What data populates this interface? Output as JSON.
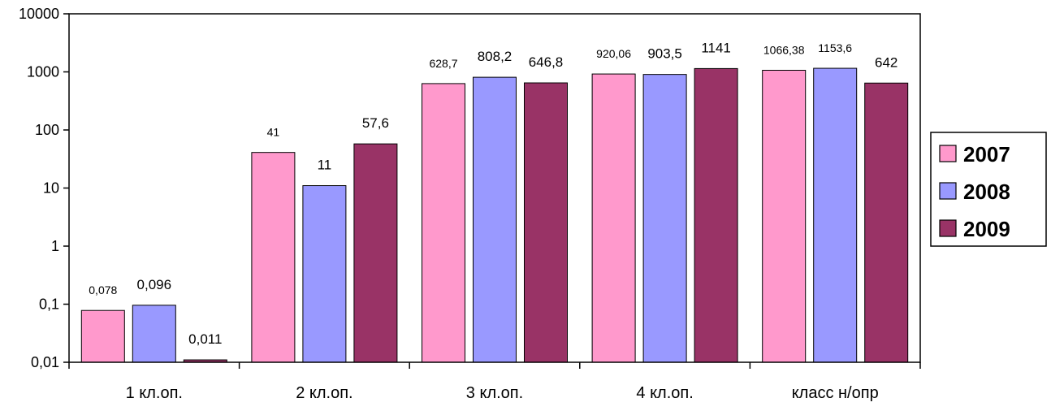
{
  "chart_data": {
    "type": "bar",
    "yscale": "log",
    "ylim": [
      0.01,
      10000
    ],
    "grid": false,
    "legend_position": "right",
    "title": "",
    "xlabel": "",
    "ylabel": "",
    "categories": [
      "1 кл.оп.",
      "2 кл.оп.",
      "3 кл.оп.",
      "4 кл.оп.",
      "класс н/опр"
    ],
    "yticks": [
      {
        "value": 0.01,
        "label": "0,01"
      },
      {
        "value": 0.1,
        "label": "0,1"
      },
      {
        "value": 1,
        "label": "1"
      },
      {
        "value": 10,
        "label": "10"
      },
      {
        "value": 100,
        "label": "100"
      },
      {
        "value": 1000,
        "label": "1000"
      },
      {
        "value": 10000,
        "label": "10000"
      }
    ],
    "series": [
      {
        "name": "2007",
        "color": "#ff99cc",
        "values": [
          0.078,
          41,
          628.7,
          920.06,
          1066.38
        ],
        "labels": [
          "0,078",
          "41",
          "628,7",
          "920,06",
          "1066,38"
        ]
      },
      {
        "name": "2008",
        "color": "#9999ff",
        "values": [
          0.096,
          11,
          808.2,
          903.5,
          1153.6
        ],
        "labels": [
          "0,096",
          "11",
          "808,2",
          "903,5",
          "1153,6"
        ]
      },
      {
        "name": "2009",
        "color": "#993366",
        "values": [
          0.011,
          57.6,
          646.8,
          1141,
          642
        ],
        "labels": [
          "0,011",
          "57,6",
          "646,8",
          "1141",
          "642"
        ]
      }
    ]
  }
}
